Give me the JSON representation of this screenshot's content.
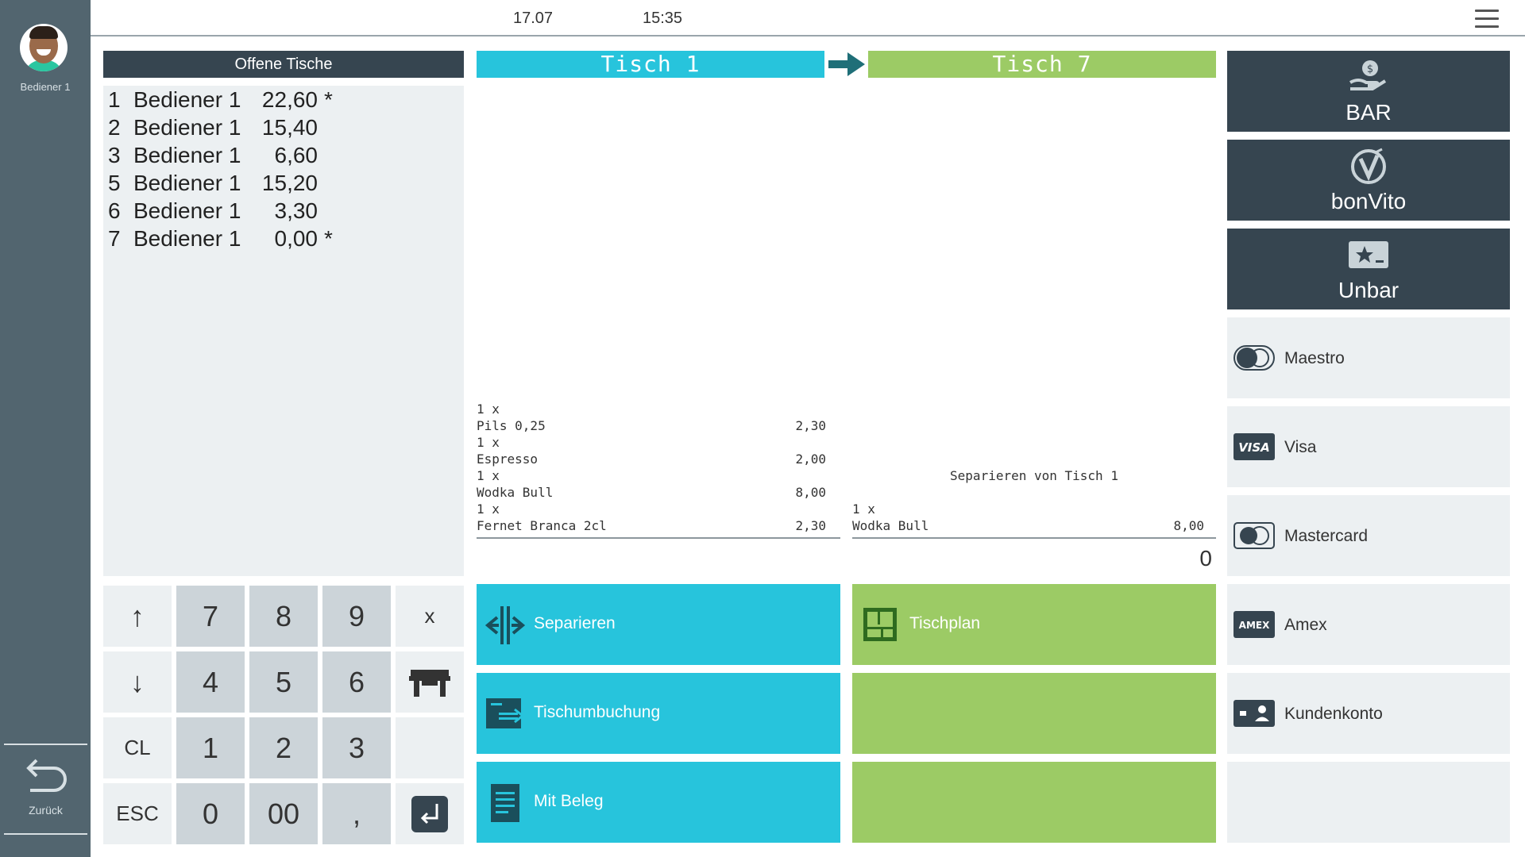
{
  "header": {
    "date": "17.07",
    "time": "15:35"
  },
  "sidebar": {
    "user_name": "Bediener 1",
    "back_label": "Zurück"
  },
  "open_tables": {
    "title": "Offene Tische",
    "rows": [
      {
        "num": "1",
        "server": "Bediener 1",
        "amount": "22,60",
        "flag": "*"
      },
      {
        "num": "2",
        "server": "Bediener 1",
        "amount": "15,40",
        "flag": ""
      },
      {
        "num": "3",
        "server": "Bediener 1",
        "amount": "6,60",
        "flag": ""
      },
      {
        "num": "5",
        "server": "Bediener 1",
        "amount": "15,20",
        "flag": ""
      },
      {
        "num": "6",
        "server": "Bediener 1",
        "amount": "3,30",
        "flag": ""
      },
      {
        "num": "7",
        "server": "Bediener 1",
        "amount": "0,00",
        "flag": "*"
      }
    ]
  },
  "keypad": {
    "up": "↑",
    "down": "↓",
    "clear": "CL",
    "escape": "ESC",
    "times": "x",
    "k7": "7",
    "k8": "8",
    "k9": "9",
    "k4": "4",
    "k5": "5",
    "k6": "6",
    "k1": "1",
    "k2": "2",
    "k3": "3",
    "k0": "0",
    "k00": "00",
    "comma": ","
  },
  "source_table": {
    "title": "Tisch 1",
    "items": [
      {
        "qty": "1 x",
        "name": "Pils 0,25",
        "price": "2,30"
      },
      {
        "qty": "1 x",
        "name": "Espresso",
        "price": "2,00"
      },
      {
        "qty": "1 x",
        "name": "Wodka Bull",
        "price": "8,00"
      },
      {
        "qty": "1 x",
        "name": "Fernet Branca 2cl",
        "price": "2,30"
      }
    ]
  },
  "target_table": {
    "title": "Tisch 7",
    "note": "Separieren von Tisch 1",
    "items": [
      {
        "qty": "1 x",
        "name": "Wodka Bull",
        "price": "8,00"
      }
    ],
    "total": "0"
  },
  "actions": {
    "separate": "Separieren",
    "rebook": "Tischumbuchung",
    "receipt": "Mit Beleg",
    "table_plan": "Tischplan"
  },
  "payments": {
    "cash": "BAR",
    "bonvito": "bonVito",
    "noncash": "Unbar",
    "maestro": "Maestro",
    "visa": "Visa",
    "mastercard": "Mastercard",
    "amex": "Amex",
    "customer_account": "Kundenkonto",
    "visa_logo": "VISA",
    "amex_logo": "AMEX"
  },
  "colors": {
    "cyan": "#27c4dc",
    "green": "#9ccb65",
    "dark": "#364550",
    "sidebar": "#52656f",
    "panel": "#ecf0f2"
  }
}
